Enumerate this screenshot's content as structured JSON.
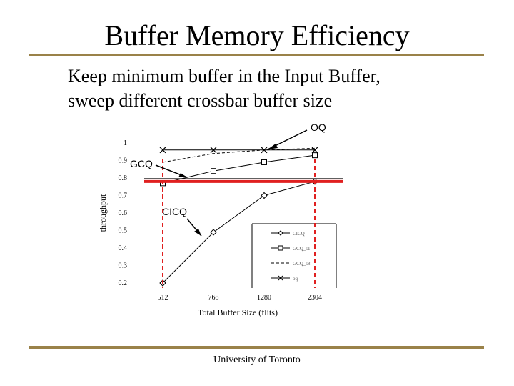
{
  "slide": {
    "title": "Buffer Memory Efficiency",
    "bullet_line1": "Keep minimum buffer in the Input Buffer,",
    "bullet_line2": "sweep different crossbar buffer size",
    "footer": "University of Toronto"
  },
  "annotations": {
    "oq": "OQ",
    "gcq": "GCQ",
    "cicq": "CICQ"
  },
  "chart_data": {
    "type": "line",
    "categories": [
      "512",
      "768",
      "1280",
      "2304"
    ],
    "xlabel": "Total Buffer Size (flits)",
    "ylabel": "throughput",
    "ylim": [
      0.2,
      1.0
    ],
    "yticks": [
      "0.2",
      "0.3",
      "0.4",
      "0.5",
      "0.6",
      "0.7",
      "0.8",
      "0.9",
      "1"
    ],
    "series": [
      {
        "name": "CICQ",
        "marker": "diamond",
        "dash": "solid",
        "values": [
          0.2,
          0.49,
          0.7,
          0.78
        ]
      },
      {
        "name": "GCQ_s1",
        "marker": "square",
        "dash": "solid",
        "values": [
          0.77,
          0.84,
          0.89,
          0.93
        ]
      },
      {
        "name": "GCQ_s8",
        "marker": "none",
        "dash": "dashed",
        "values": [
          0.89,
          0.94,
          0.96,
          0.97
        ]
      },
      {
        "name": "oq",
        "marker": "x",
        "dash": "solid",
        "values": [
          0.96,
          0.96,
          0.96,
          0.96
        ]
      }
    ],
    "reference_line": {
      "value": 0.78,
      "color": "#e02020"
    },
    "legend_position": "bottom-right"
  }
}
